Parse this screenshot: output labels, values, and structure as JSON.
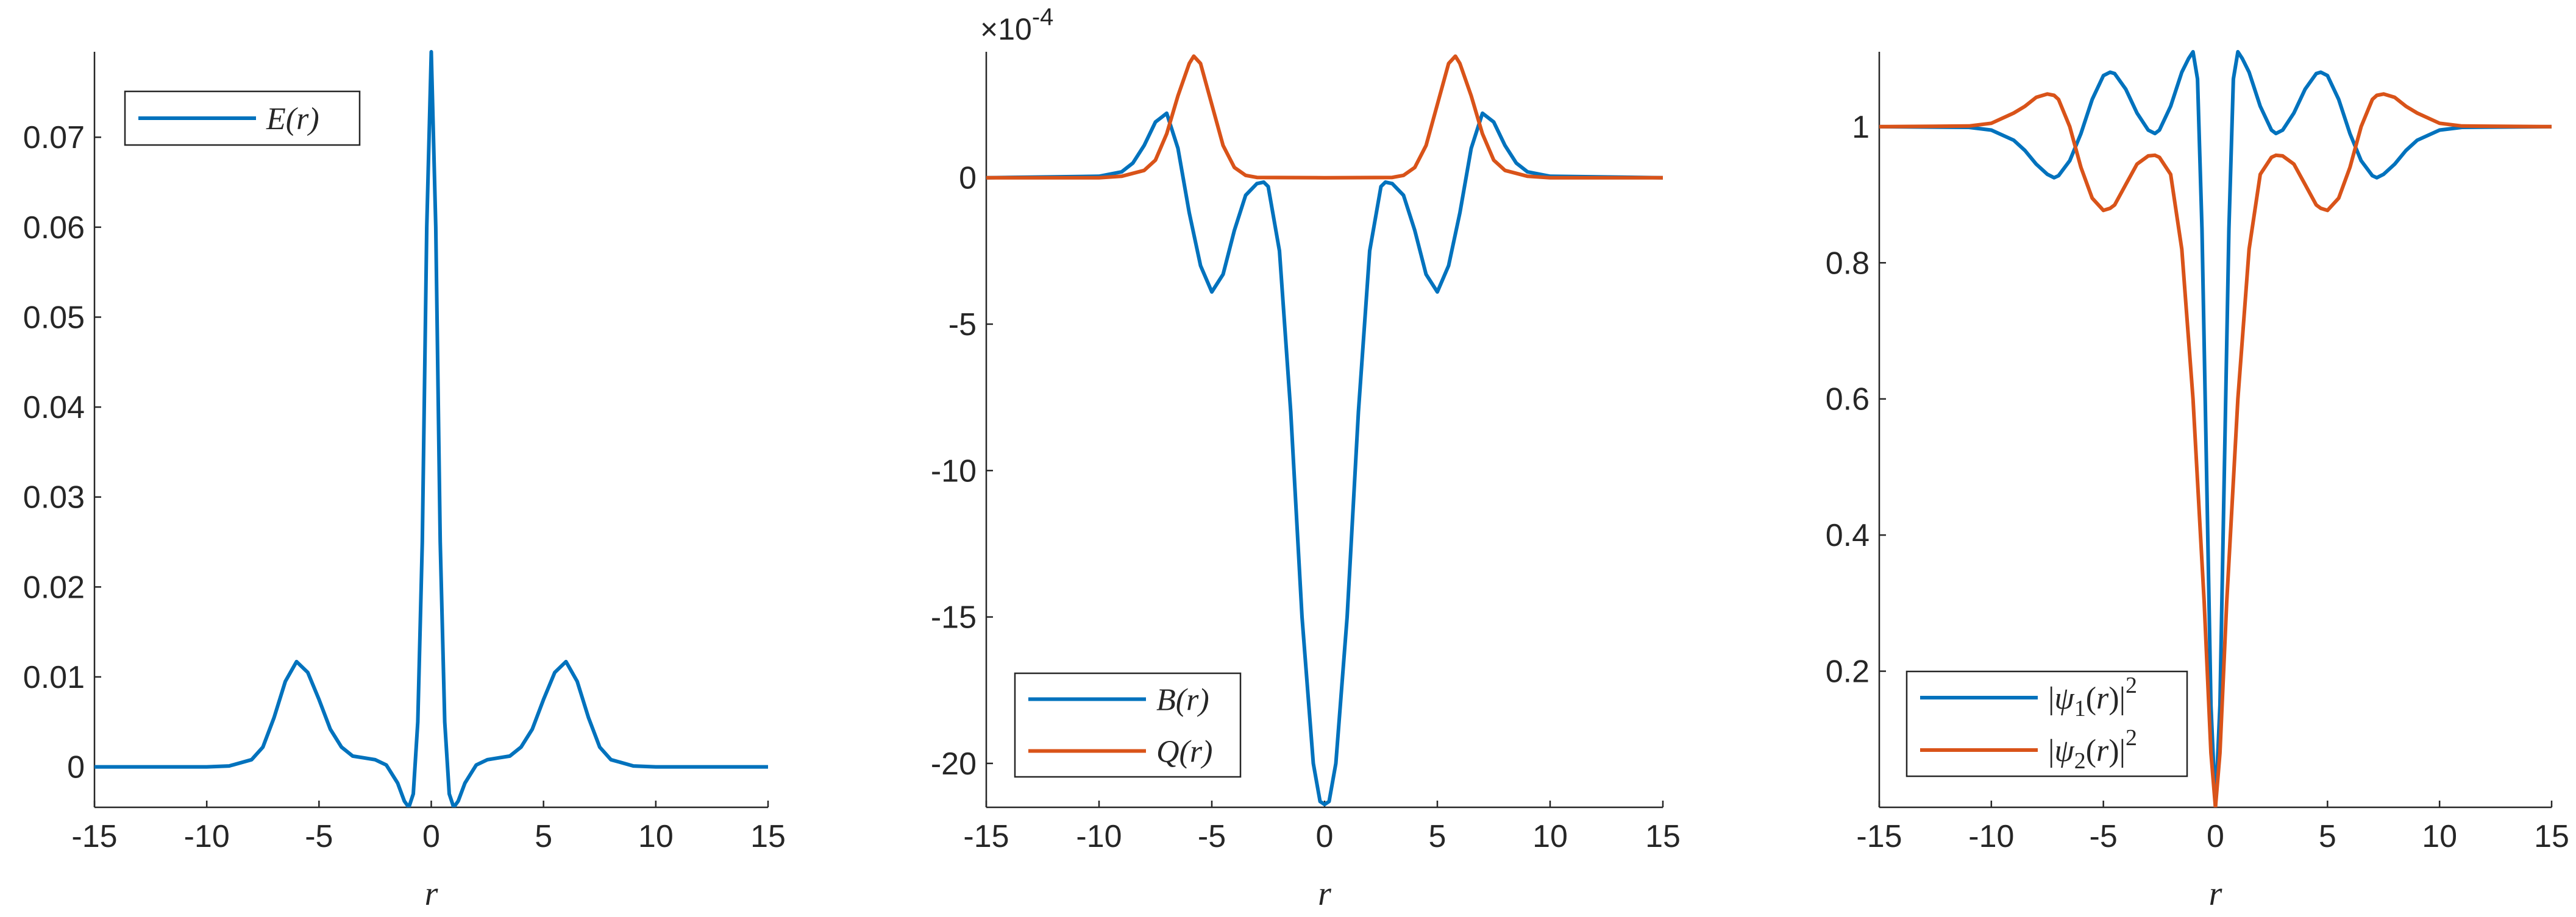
{
  "chart_data": [
    {
      "type": "line",
      "xlabel": "r",
      "ylabel": "",
      "xlim": [
        -15,
        15
      ],
      "ylim": [
        -0.0045,
        0.0795
      ],
      "xticks": [
        -15,
        -10,
        -5,
        0,
        5,
        10,
        15
      ],
      "yticks": [
        0,
        0.01,
        0.02,
        0.03,
        0.04,
        0.05,
        0.06,
        0.07
      ],
      "ytick_labels": [
        "0",
        "0.01",
        "0.02",
        "0.03",
        "0.04",
        "0.05",
        "0.06",
        "0.07"
      ],
      "exponent_label": "",
      "grid": false,
      "legend_position": "top-left",
      "series": [
        {
          "name": "E(r)",
          "color": "#0072BD",
          "x": [
            -15,
            -10,
            -9,
            -8,
            -7.5,
            -7,
            -6.5,
            -6,
            -5.5,
            -5,
            -4.5,
            -4,
            -3.5,
            -3,
            -2.5,
            -2,
            -1.5,
            -1.2,
            -1,
            -0.8,
            -0.6,
            -0.4,
            -0.2,
            0,
            0.2,
            0.4,
            0.6,
            0.8,
            1,
            1.2,
            1.5,
            2,
            2.5,
            3,
            3.5,
            4,
            4.5,
            5,
            5.5,
            6,
            6.5,
            7,
            7.5,
            8,
            9,
            10,
            15
          ],
          "y": [
            0,
            0,
            0.0001,
            0.0008,
            0.0022,
            0.0055,
            0.0095,
            0.0117,
            0.0105,
            0.0075,
            0.0042,
            0.0022,
            0.0012,
            0.001,
            0.0008,
            0.0002,
            -0.0018,
            -0.0038,
            -0.0045,
            -0.003,
            0.005,
            0.025,
            0.06,
            0.0795,
            0.06,
            0.025,
            0.005,
            -0.003,
            -0.0045,
            -0.0038,
            -0.0018,
            0.0002,
            0.0008,
            0.001,
            0.0012,
            0.0022,
            0.0042,
            0.0075,
            0.0105,
            0.0117,
            0.0095,
            0.0055,
            0.0022,
            0.0008,
            0.0001,
            0,
            0
          ]
        }
      ]
    },
    {
      "type": "line",
      "xlabel": "r",
      "ylabel": "",
      "xlim": [
        -15,
        15
      ],
      "ylim": [
        -21.5,
        4.3
      ],
      "xticks": [
        -15,
        -10,
        -5,
        0,
        5,
        10,
        15
      ],
      "yticks": [
        -20,
        -15,
        -10,
        -5,
        0
      ],
      "ytick_labels": [
        "-20",
        "-15",
        "-10",
        "-5",
        "0"
      ],
      "exponent_label": "×10⁻⁴",
      "grid": false,
      "legend_position": "bottom-right",
      "series": [
        {
          "name": "B(r)",
          "color": "#0072BD",
          "x": [
            -15,
            -10,
            -9,
            -8.5,
            -8,
            -7.5,
            -7,
            -6.5,
            -6,
            -5.5,
            -5,
            -4.5,
            -4,
            -3.5,
            -3,
            -2.7,
            -2.5,
            -2,
            -1.5,
            -1,
            -0.5,
            -0.2,
            0,
            0.2,
            0.5,
            1,
            1.5,
            2,
            2.5,
            2.7,
            3,
            3.5,
            4,
            4.5,
            5,
            5.5,
            6,
            6.5,
            7,
            7.5,
            8,
            8.5,
            9,
            10,
            15
          ],
          "y": [
            0,
            0.05,
            0.2,
            0.5,
            1.1,
            1.9,
            2.2,
            1.0,
            -1.2,
            -3.0,
            -3.9,
            -3.3,
            -1.8,
            -0.6,
            -0.2,
            -0.15,
            -0.3,
            -2.5,
            -8,
            -15,
            -20,
            -21.3,
            -21.4,
            -21.3,
            -20,
            -15,
            -8,
            -2.5,
            -0.3,
            -0.15,
            -0.2,
            -0.6,
            -1.8,
            -3.3,
            -3.9,
            -3.0,
            -1.2,
            1.0,
            2.2,
            1.9,
            1.1,
            0.5,
            0.2,
            0.05,
            0
          ]
        },
        {
          "name": "Q(r)",
          "color": "#D95319",
          "x": [
            -15,
            -10,
            -9,
            -8,
            -7.5,
            -7,
            -6.5,
            -6,
            -5.8,
            -5.5,
            -5,
            -4.5,
            -4,
            -3.5,
            -3,
            0,
            3,
            3.5,
            4,
            4.5,
            5,
            5.5,
            5.8,
            6,
            6.5,
            7,
            7.5,
            8,
            9,
            10,
            15
          ],
          "y": [
            0,
            0,
            0.05,
            0.25,
            0.6,
            1.5,
            2.8,
            3.9,
            4.15,
            3.9,
            2.5,
            1.1,
            0.35,
            0.08,
            0.01,
            0,
            0.01,
            0.08,
            0.35,
            1.1,
            2.5,
            3.9,
            4.15,
            3.9,
            2.8,
            1.5,
            0.6,
            0.25,
            0.05,
            0,
            0
          ]
        }
      ]
    },
    {
      "type": "line",
      "xlabel": "r",
      "ylabel": "",
      "xlim": [
        -15,
        15
      ],
      "ylim": [
        0,
        1.11
      ],
      "xticks": [
        -15,
        -10,
        -5,
        0,
        5,
        10,
        15
      ],
      "yticks": [
        0.2,
        0.4,
        0.6,
        0.8,
        1
      ],
      "ytick_labels": [
        "0.2",
        "0.4",
        "0.6",
        "0.8",
        "1"
      ],
      "exponent_label": "",
      "grid": false,
      "legend_position": "bottom-left",
      "series": [
        {
          "name": "|ψ1(r)|^2",
          "color": "#0072BD",
          "x": [
            -15,
            -11,
            -10,
            -9,
            -8.5,
            -8,
            -7.5,
            -7.2,
            -7,
            -6.5,
            -6,
            -5.5,
            -5,
            -4.7,
            -4.5,
            -4,
            -3.5,
            -3,
            -2.7,
            -2.5,
            -2,
            -1.5,
            -1.2,
            -1,
            -0.8,
            -0.6,
            -0.4,
            -0.2,
            0,
            0.2,
            0.4,
            0.6,
            0.8,
            1,
            1.2,
            1.5,
            2,
            2.5,
            2.7,
            3,
            3.5,
            4,
            4.5,
            4.7,
            5,
            5.5,
            6,
            6.5,
            7,
            7.2,
            7.5,
            8,
            8.5,
            9,
            10,
            11,
            15
          ],
          "y": [
            1.0,
            0.999,
            0.995,
            0.98,
            0.965,
            0.945,
            0.93,
            0.925,
            0.928,
            0.95,
            0.99,
            1.04,
            1.075,
            1.08,
            1.078,
            1.055,
            1.02,
            0.995,
            0.99,
            0.995,
            1.03,
            1.08,
            1.1,
            1.11,
            1.07,
            0.85,
            0.5,
            0.15,
            0.0,
            0.15,
            0.5,
            0.85,
            1.07,
            1.11,
            1.1,
            1.08,
            1.03,
            0.995,
            0.99,
            0.995,
            1.02,
            1.055,
            1.078,
            1.08,
            1.075,
            1.04,
            0.99,
            0.95,
            0.928,
            0.925,
            0.93,
            0.945,
            0.965,
            0.98,
            0.995,
            0.999,
            1.0
          ]
        },
        {
          "name": "|ψ2(r)|^2",
          "color": "#D95319",
          "x": [
            -15,
            -11,
            -10,
            -9,
            -8.5,
            -8,
            -7.5,
            -7.2,
            -7,
            -6.5,
            -6,
            -5.5,
            -5,
            -4.7,
            -4.5,
            -4,
            -3.5,
            -3,
            -2.7,
            -2.5,
            -2,
            -1.5,
            -1,
            -0.5,
            -0.2,
            0,
            0.2,
            0.5,
            1,
            1.5,
            2,
            2.5,
            2.7,
            3,
            3.5,
            4,
            4.5,
            4.7,
            5,
            5.5,
            6,
            6.5,
            7,
            7.2,
            7.5,
            8,
            8.5,
            9,
            10,
            11,
            15
          ],
          "y": [
            1.0,
            1.001,
            1.005,
            1.02,
            1.03,
            1.043,
            1.048,
            1.046,
            1.04,
            1.0,
            0.94,
            0.895,
            0.877,
            0.88,
            0.885,
            0.915,
            0.945,
            0.957,
            0.958,
            0.955,
            0.93,
            0.82,
            0.6,
            0.3,
            0.08,
            0.0,
            0.08,
            0.3,
            0.6,
            0.82,
            0.93,
            0.955,
            0.958,
            0.957,
            0.945,
            0.915,
            0.885,
            0.88,
            0.877,
            0.895,
            0.94,
            1.0,
            1.04,
            1.046,
            1.048,
            1.043,
            1.03,
            1.02,
            1.005,
            1.001,
            1.0
          ]
        }
      ]
    }
  ]
}
